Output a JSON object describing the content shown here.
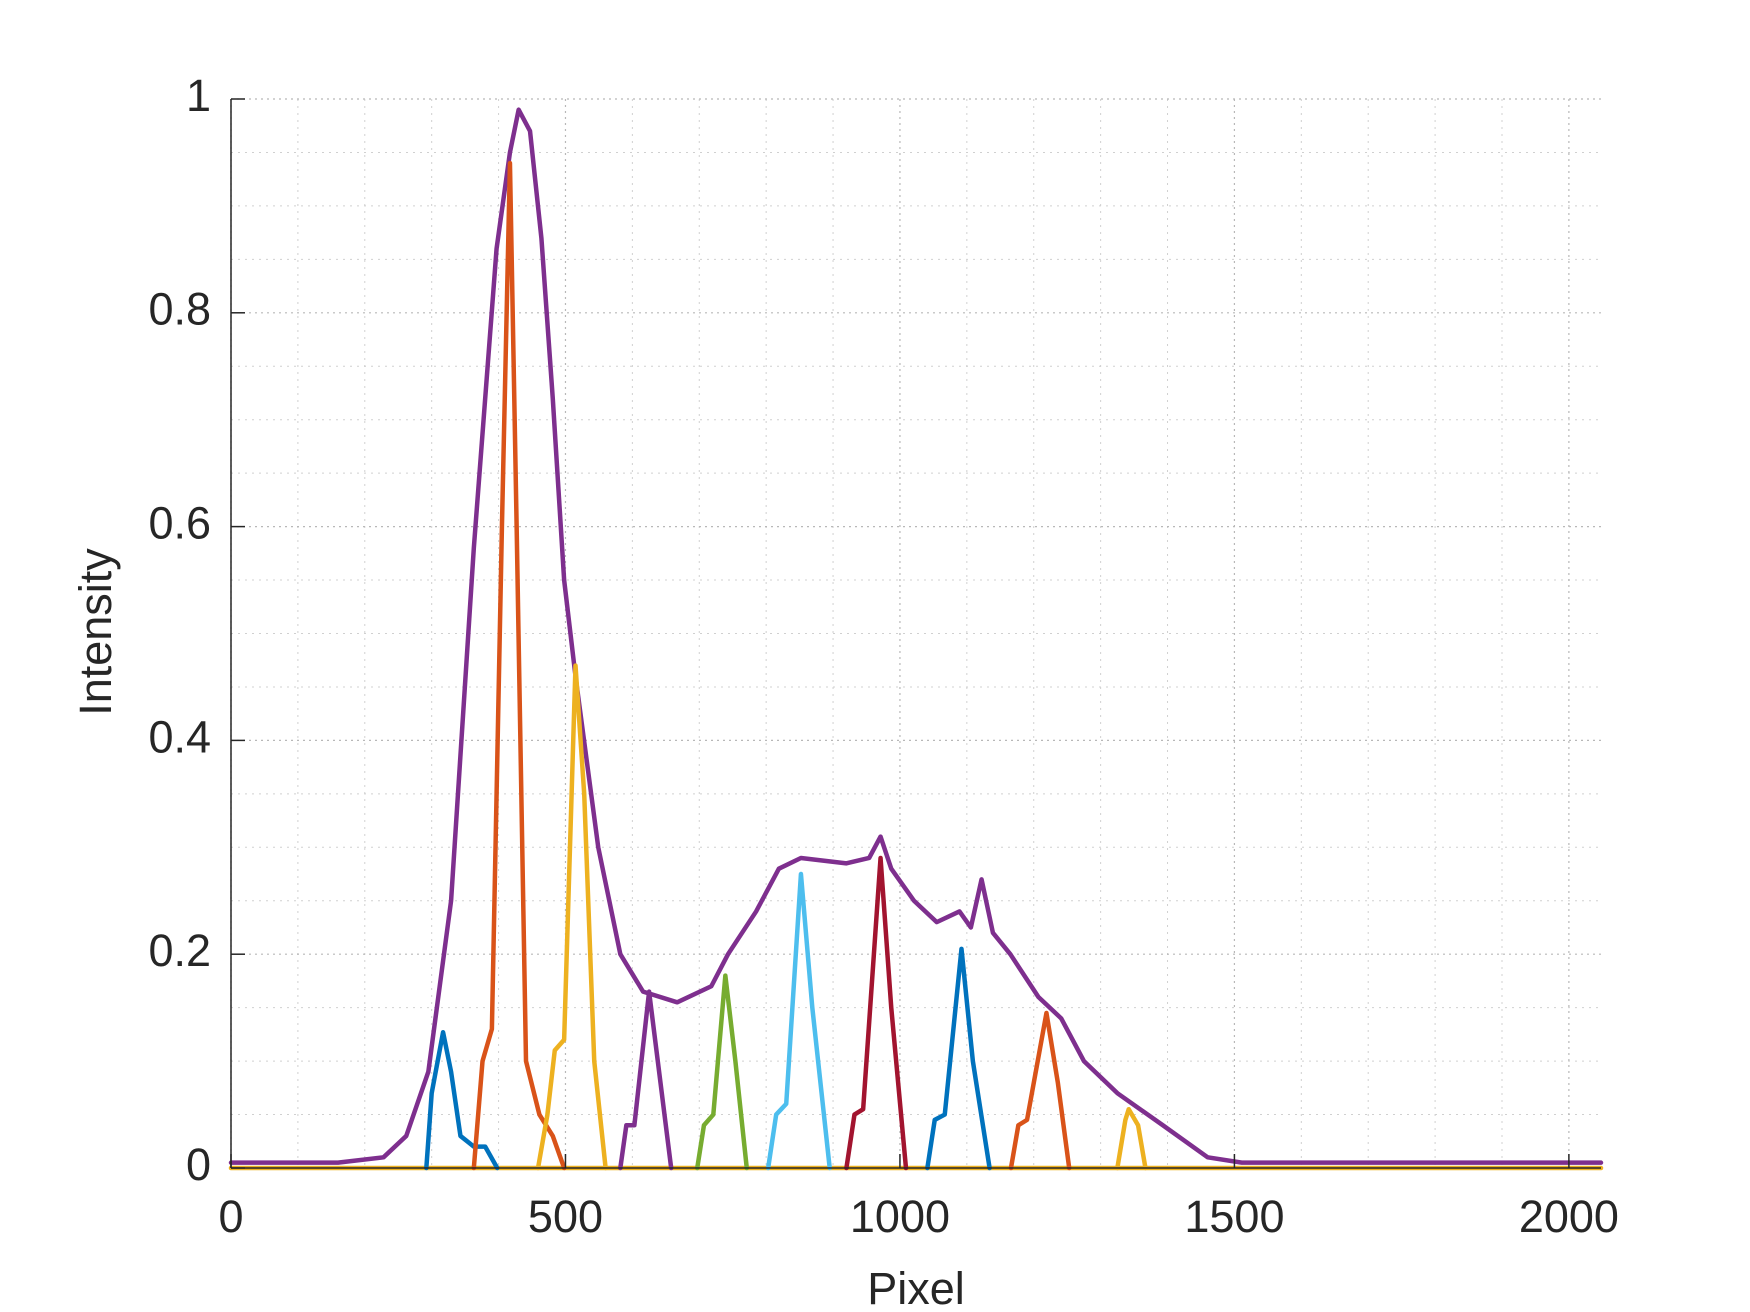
{
  "chart_data": {
    "type": "line",
    "xlabel": "Pixel",
    "ylabel": "Intensity",
    "xlim": [
      0,
      2048
    ],
    "ylim": [
      0,
      1
    ],
    "xticks": [
      0,
      500,
      1000,
      1500,
      2000
    ],
    "yticks": [
      0,
      0.2,
      0.4,
      0.6,
      0.8,
      1
    ],
    "grid": true,
    "minor_grid": true,
    "series": [
      {
        "color": "#EDB120",
        "x": [
          0,
          2048
        ],
        "values": [
          0,
          0
        ]
      },
      {
        "color": "#7E2F8E",
        "x": [
          0,
          160,
          228,
          262,
          295,
          329,
          363,
          397,
          417,
          430,
          447,
          464,
          481,
          498,
          515,
          549,
          582,
          616,
          667,
          718,
          743,
          785,
          819,
          852,
          920,
          954,
          971,
          987,
          1021,
          1055,
          1089,
          1106,
          1122,
          1139,
          1165,
          1207,
          1241,
          1275,
          1325,
          1393,
          1460,
          1511,
          2048
        ],
        "values": [
          0.005,
          0.005,
          0.01,
          0.03,
          0.09,
          0.25,
          0.58,
          0.86,
          0.95,
          0.99,
          0.97,
          0.87,
          0.72,
          0.55,
          0.46,
          0.3,
          0.2,
          0.165,
          0.155,
          0.17,
          0.2,
          0.24,
          0.28,
          0.29,
          0.285,
          0.29,
          0.31,
          0.28,
          0.25,
          0.23,
          0.24,
          0.225,
          0.27,
          0.22,
          0.2,
          0.16,
          0.14,
          0.1,
          0.07,
          0.04,
          0.01,
          0.005,
          0.005
        ]
      },
      {
        "color": "#0072BD",
        "x": [
          292,
          300,
          317,
          329,
          343,
          363,
          380,
          398
        ],
        "values": [
          0,
          0.07,
          0.127,
          0.09,
          0.03,
          0.02,
          0.02,
          0
        ]
      },
      {
        "color": "#D95319",
        "x": [
          363,
          376,
          390,
          405,
          417,
          427,
          441,
          461,
          481,
          498
        ],
        "values": [
          0,
          0.1,
          0.13,
          0.6,
          0.94,
          0.6,
          0.1,
          0.05,
          0.03,
          0
        ]
      },
      {
        "color": "#EDB120",
        "x": [
          459,
          473,
          484,
          498,
          515,
          528,
          543,
          560
        ],
        "values": [
          0,
          0.05,
          0.11,
          0.12,
          0.47,
          0.35,
          0.1,
          0
        ]
      },
      {
        "color": "#7E2F8E",
        "x": [
          582,
          591,
          603,
          625,
          638,
          658
        ],
        "values": [
          0,
          0.04,
          0.04,
          0.165,
          0.1,
          0
        ]
      },
      {
        "color": "#77AC30",
        "x": [
          697,
          707,
          721,
          739,
          754,
          771
        ],
        "values": [
          0,
          0.04,
          0.05,
          0.18,
          0.1,
          0
        ]
      },
      {
        "color": "#4DBEEE",
        "x": [
          803,
          815,
          830,
          852,
          869,
          895
        ],
        "values": [
          0,
          0.05,
          0.06,
          0.275,
          0.15,
          0
        ]
      },
      {
        "color": "#A2142F",
        "x": [
          920,
          932,
          945,
          971,
          987,
          1009
        ],
        "values": [
          0,
          0.05,
          0.055,
          0.29,
          0.15,
          0
        ]
      },
      {
        "color": "#0072BD",
        "x": [
          1041,
          1052,
          1067,
          1092,
          1109,
          1134
        ],
        "values": [
          0,
          0.045,
          0.05,
          0.205,
          0.1,
          0
        ]
      },
      {
        "color": "#D95319",
        "x": [
          1166,
          1177,
          1190,
          1219,
          1236,
          1253
        ],
        "values": [
          0,
          0.04,
          0.045,
          0.145,
          0.08,
          0
        ]
      },
      {
        "color": "#EDB120",
        "x": [
          1325,
          1337,
          1342,
          1356,
          1367
        ],
        "values": [
          0,
          0.045,
          0.055,
          0.04,
          0
        ]
      }
    ]
  }
}
